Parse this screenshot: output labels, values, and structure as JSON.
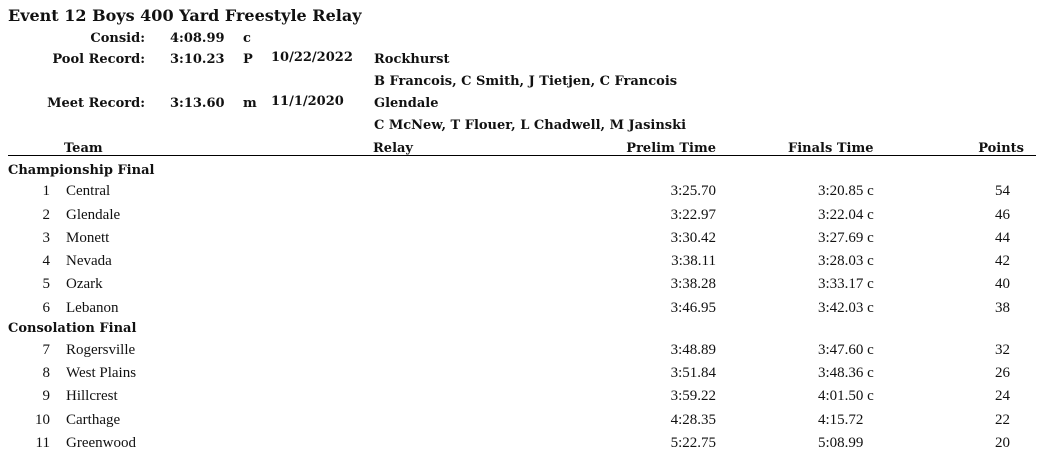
{
  "event": {
    "title": "Event 12  Boys 400 Yard Freestyle Relay"
  },
  "records": [
    {
      "label": "Consid:",
      "time": "4:08.99",
      "code": "c",
      "date": "",
      "team": "",
      "swimmers": ""
    },
    {
      "label": "Pool Record:",
      "time": "3:10.23",
      "code": "P",
      "date": "10/22/2022",
      "team": "Rockhurst",
      "swimmers": "B Francois, C Smith, J Tietjen, C Francois"
    },
    {
      "label": "Meet Record:",
      "time": "3:13.60",
      "code": "m",
      "date": "11/1/2020",
      "team": "Glendale",
      "swimmers": "C McNew, T Flouer, L Chadwell, M Jasinski"
    }
  ],
  "columns": {
    "team": "Team",
    "relay": "Relay",
    "prelim": "Prelim Time",
    "finals": "Finals Time",
    "points": "Points"
  },
  "sections": [
    {
      "title": "Championship Final",
      "rows": [
        {
          "place": "1",
          "team": "Central",
          "prelim": "3:25.70",
          "finals": "3:20.85 c",
          "points": "54"
        },
        {
          "place": "2",
          "team": "Glendale",
          "prelim": "3:22.97",
          "finals": "3:22.04 c",
          "points": "46"
        },
        {
          "place": "3",
          "team": "Monett",
          "prelim": "3:30.42",
          "finals": "3:27.69 c",
          "points": "44"
        },
        {
          "place": "4",
          "team": "Nevada",
          "prelim": "3:38.11",
          "finals": "3:28.03 c",
          "points": "42"
        },
        {
          "place": "5",
          "team": "Ozark",
          "prelim": "3:38.28",
          "finals": "3:33.17 c",
          "points": "40"
        },
        {
          "place": "6",
          "team": "Lebanon",
          "prelim": "3:46.95",
          "finals": "3:42.03 c",
          "points": "38"
        }
      ]
    },
    {
      "title": "Consolation Final",
      "rows": [
        {
          "place": "7",
          "team": "Rogersville",
          "prelim": "3:48.89",
          "finals": "3:47.60 c",
          "points": "32"
        },
        {
          "place": "8",
          "team": "West Plains",
          "prelim": "3:51.84",
          "finals": "3:48.36 c",
          "points": "26"
        },
        {
          "place": "9",
          "team": "Hillcrest",
          "prelim": "3:59.22",
          "finals": "4:01.50 c",
          "points": "24"
        },
        {
          "place": "10",
          "team": "Carthage",
          "prelim": "4:28.35",
          "finals": "4:15.72",
          "points": "22"
        },
        {
          "place": "11",
          "team": "Greenwood",
          "prelim": "5:22.75",
          "finals": "5:08.99",
          "points": "20"
        }
      ]
    }
  ]
}
